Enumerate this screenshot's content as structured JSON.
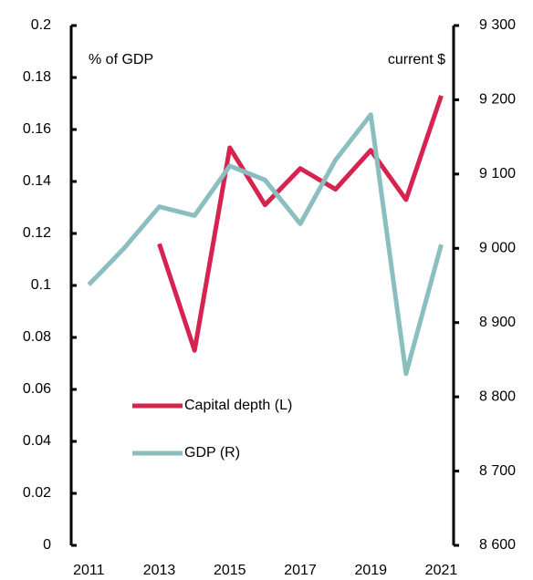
{
  "chart_data": {
    "type": "line",
    "annotations": [
      "% of GDP",
      "current $"
    ],
    "x": [
      2011,
      2012,
      2013,
      2014,
      2015,
      2016,
      2017,
      2018,
      2019,
      2020,
      2021
    ],
    "xlim": [
      2010.5,
      2021.35
    ],
    "xticks": [
      2011,
      2013,
      2015,
      2017,
      2019,
      2021
    ],
    "ylim": [
      0,
      0.2
    ],
    "yticks": [
      0,
      0.02,
      0.04,
      0.06,
      0.08,
      0.1,
      0.12,
      0.14,
      0.16,
      0.18,
      0.2
    ],
    "y2lim": [
      8600,
      9300
    ],
    "y2ticks": [
      {
        "value": 8600,
        "label": "8 600"
      },
      {
        "value": 8700,
        "label": "8 700"
      },
      {
        "value": 8800,
        "label": "8 800"
      },
      {
        "value": 8900,
        "label": "8 900"
      },
      {
        "value": 9000,
        "label": "9 000"
      },
      {
        "value": 9100,
        "label": "9 100"
      },
      {
        "value": 9200,
        "label": "9 200"
      },
      {
        "value": 9300,
        "label": "9 300"
      }
    ],
    "series": [
      {
        "name": "Capital depth (L)",
        "color": "#d62450",
        "values": [
          null,
          null,
          0.116,
          0.075,
          0.153,
          0.131,
          0.145,
          0.137,
          0.152,
          0.133,
          0.173
        ]
      },
      {
        "name": "GDP (R)",
        "color": "#8bbfbf",
        "axis": "y2",
        "values": [
          8951,
          9000,
          9056,
          9044,
          9111,
          9092,
          9033,
          9119,
          9180,
          8831,
          9005
        ]
      }
    ]
  }
}
